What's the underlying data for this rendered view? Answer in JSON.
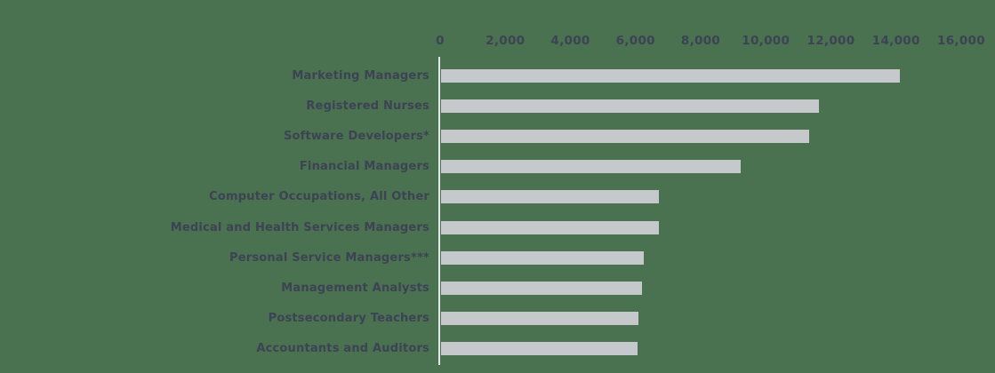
{
  "chart_data": {
    "type": "bar",
    "orientation": "horizontal",
    "title": "",
    "xlabel": "",
    "ylabel": "",
    "categories": [
      "Marketing Managers",
      "Registered Nurses",
      "Software Developers*",
      "Financial Managers",
      "Computer Occupations, All Other",
      "Medical and Health Services Managers",
      "Personal Service Managers***",
      "Management Analysts",
      "Postsecondary Teachers",
      "Accountants and Auditors"
    ],
    "values": [
      14100,
      11600,
      11300,
      9200,
      6700,
      6700,
      6220,
      6170,
      6050,
      6030
    ],
    "x_ticks": [
      0,
      2000,
      4000,
      6000,
      8000,
      10000,
      12000,
      14000,
      16000
    ],
    "x_tick_labels": [
      "0",
      "2,000",
      "4,000",
      "6,000",
      "8,000",
      "10,000",
      "12,000",
      "14,000",
      "16,000"
    ],
    "xlim": [
      0,
      16000
    ],
    "grid": false,
    "legend": "none",
    "axis_position": "top",
    "colors": {
      "background": "#4a7150",
      "bar": "#c5c9cc",
      "text": "#3d4354",
      "axis_line": "#e4e7e7"
    }
  }
}
